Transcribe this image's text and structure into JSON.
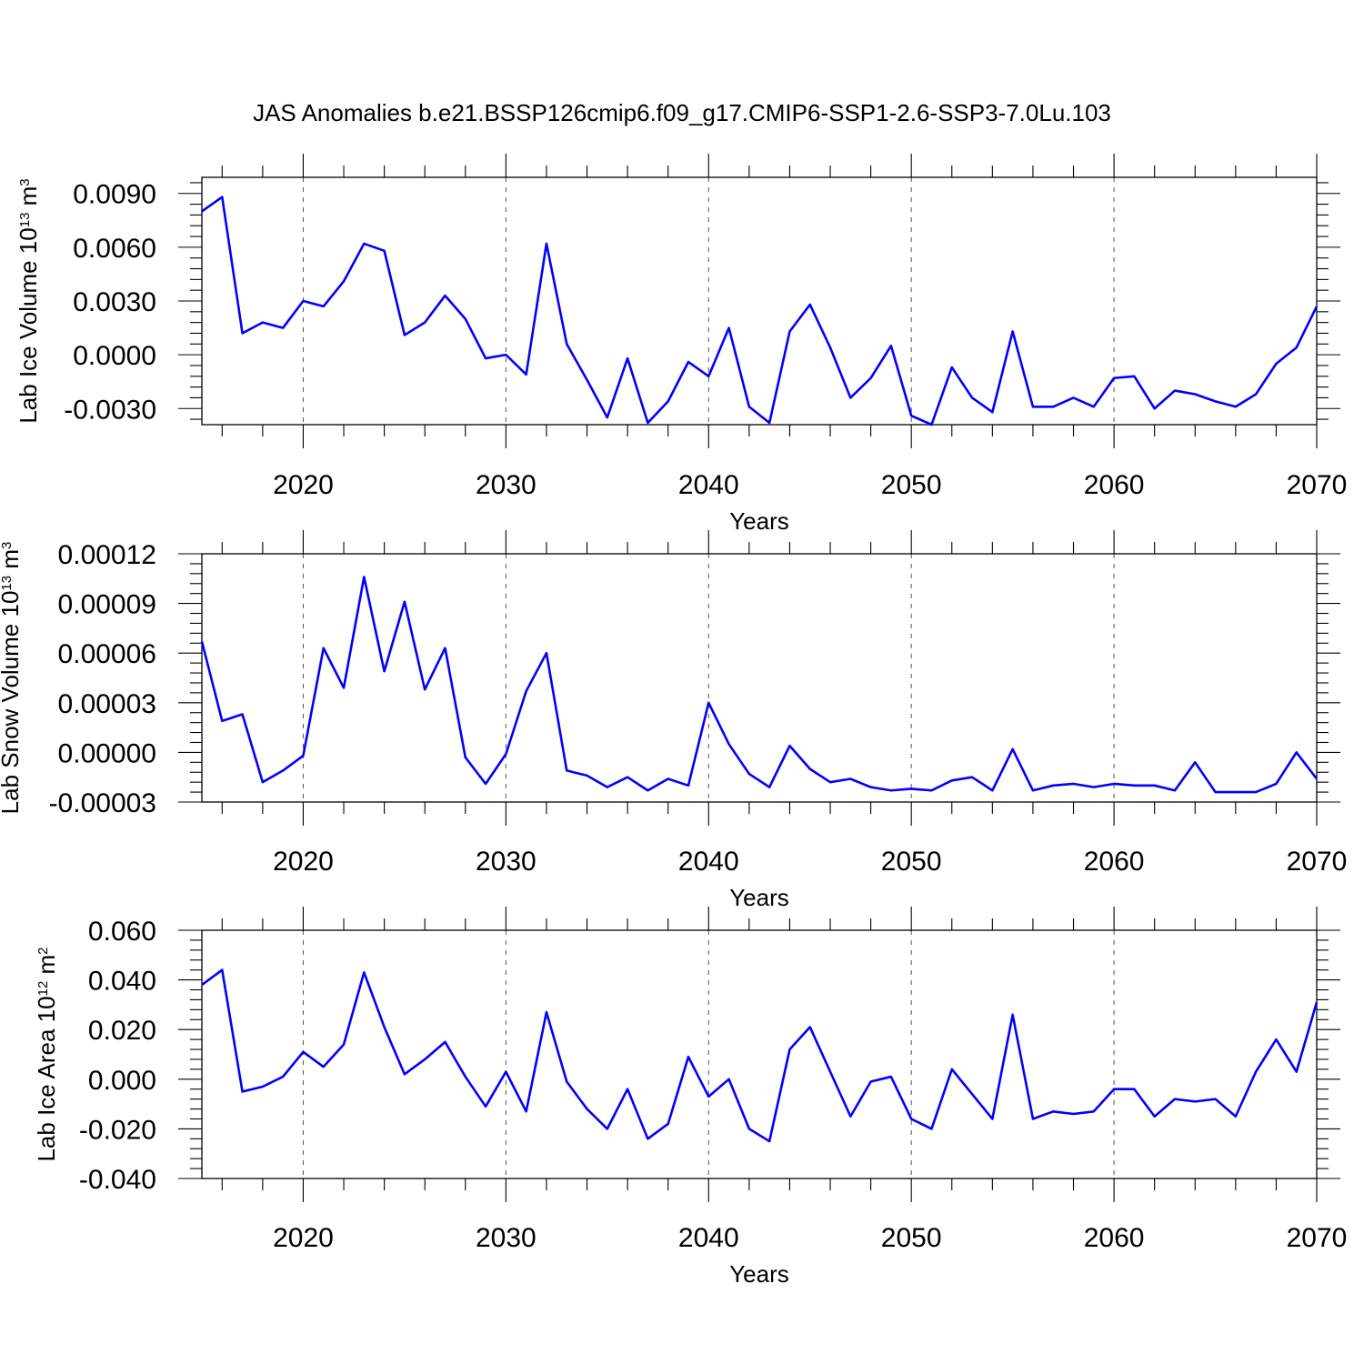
{
  "page": {
    "title": "JAS Anomalies b.e21.BSSP126cmip6.f09_g17.CMIP6-SSP1-2.6-SSP3-7.0Lu.103"
  },
  "colors": {
    "series": "#0000ff",
    "axis": "#000000",
    "grid": "#555555"
  },
  "chart_data": [
    {
      "type": "line",
      "ylabel": "Lab Ice Volume",
      "ylabel_unit_base": "10",
      "ylabel_unit_exp": "13",
      "ylabel_unit": "m",
      "ylabel_unit_pow": "3",
      "xlabel": "Years",
      "xlim": [
        2015,
        2070
      ],
      "ylim": [
        -0.0039,
        0.0099
      ],
      "grid_x": true,
      "x_ticks": [
        2020,
        2030,
        2040,
        2050,
        2060,
        2070
      ],
      "x_tick_labels": [
        "2020",
        "2030",
        "2040",
        "2050",
        "2060",
        "2070"
      ],
      "y_ticks": [
        -0.003,
        0.0,
        0.003,
        0.006,
        0.009
      ],
      "y_tick_labels": [
        "-0.0030",
        "0.0000",
        "0.0030",
        "0.0060",
        "0.0090"
      ],
      "x": [
        2015,
        2016,
        2017,
        2018,
        2019,
        2020,
        2021,
        2022,
        2023,
        2024,
        2025,
        2026,
        2027,
        2028,
        2029,
        2030,
        2031,
        2032,
        2033,
        2034,
        2035,
        2036,
        2037,
        2038,
        2039,
        2040,
        2041,
        2042,
        2043,
        2044,
        2045,
        2046,
        2047,
        2048,
        2049,
        2050,
        2051,
        2052,
        2053,
        2054,
        2055,
        2056,
        2057,
        2058,
        2059,
        2060,
        2061,
        2062,
        2063,
        2064,
        2065,
        2066,
        2067,
        2068,
        2069,
        2070
      ],
      "values": [
        0.008,
        0.0088,
        0.0012,
        0.0018,
        0.0015,
        0.003,
        0.0027,
        0.0041,
        0.0062,
        0.0058,
        0.0011,
        0.0018,
        0.0033,
        0.002,
        -0.0002,
        0.0,
        -0.0011,
        0.0062,
        0.0006,
        -0.0014,
        -0.0035,
        -0.0002,
        -0.0038,
        -0.0026,
        -0.0004,
        -0.0012,
        0.0015,
        -0.0029,
        -0.0038,
        0.0013,
        0.0028,
        0.0004,
        -0.0024,
        -0.0013,
        0.0005,
        -0.0034,
        -0.0039,
        -0.0007,
        -0.0024,
        -0.0032,
        0.0013,
        -0.0029,
        -0.0029,
        -0.0024,
        -0.0029,
        -0.0013,
        -0.0012,
        -0.003,
        -0.002,
        -0.0022,
        -0.0026,
        -0.0029,
        -0.0022,
        -0.0005,
        0.0004,
        0.0027
      ]
    },
    {
      "type": "line",
      "ylabel": "Lab Snow Volume",
      "ylabel_unit_base": "10",
      "ylabel_unit_exp": "13",
      "ylabel_unit": "m",
      "ylabel_unit_pow": "3",
      "xlabel": "Years",
      "xlim": [
        2015,
        2070
      ],
      "ylim": [
        -3e-05,
        0.00012
      ],
      "grid_x": true,
      "x_ticks": [
        2020,
        2030,
        2040,
        2050,
        2060,
        2070
      ],
      "x_tick_labels": [
        "2020",
        "2030",
        "2040",
        "2050",
        "2060",
        "2070"
      ],
      "y_ticks": [
        -3e-05,
        0.0,
        3e-05,
        6e-05,
        9e-05,
        0.00012
      ],
      "y_tick_labels": [
        "-0.00003",
        "0.00000",
        "0.00003",
        "0.00006",
        "0.00009",
        "0.00012"
      ],
      "x": [
        2015,
        2016,
        2017,
        2018,
        2019,
        2020,
        2021,
        2022,
        2023,
        2024,
        2025,
        2026,
        2027,
        2028,
        2029,
        2030,
        2031,
        2032,
        2033,
        2034,
        2035,
        2036,
        2037,
        2038,
        2039,
        2040,
        2041,
        2042,
        2043,
        2044,
        2045,
        2046,
        2047,
        2048,
        2049,
        2050,
        2051,
        2052,
        2053,
        2054,
        2055,
        2056,
        2057,
        2058,
        2059,
        2060,
        2061,
        2062,
        2063,
        2064,
        2065,
        2066,
        2067,
        2068,
        2069,
        2070
      ],
      "values": [
        6.7e-05,
        1.9e-05,
        2.3e-05,
        -1.8e-05,
        -1.1e-05,
        -2e-06,
        6.3e-05,
        3.9e-05,
        0.000106,
        4.9e-05,
        9.1e-05,
        3.8e-05,
        6.3e-05,
        -3e-06,
        -1.9e-05,
        -1e-06,
        3.7e-05,
        6e-05,
        -1.1e-05,
        -1.4e-05,
        -2.1e-05,
        -1.5e-05,
        -2.3e-05,
        -1.6e-05,
        -2e-05,
        3e-05,
        5e-06,
        -1.3e-05,
        -2.1e-05,
        4e-06,
        -1e-05,
        -1.8e-05,
        -1.6e-05,
        -2.1e-05,
        -2.3e-05,
        -2.2e-05,
        -2.3e-05,
        -1.7e-05,
        -1.5e-05,
        -2.3e-05,
        2e-06,
        -2.3e-05,
        -2e-05,
        -1.9e-05,
        -2.1e-05,
        -1.9e-05,
        -2e-05,
        -2e-05,
        -2.3e-05,
        -6e-06,
        -2.4e-05,
        -2.4e-05,
        -2.4e-05,
        -1.9e-05,
        0.0,
        -1.6e-05
      ]
    },
    {
      "type": "line",
      "ylabel": "Lab Ice Area",
      "ylabel_unit_base": "10",
      "ylabel_unit_exp": "12",
      "ylabel_unit": "m",
      "ylabel_unit_pow": "2",
      "xlabel": "Years",
      "xlim": [
        2015,
        2070
      ],
      "ylim": [
        -0.04,
        0.06
      ],
      "grid_x": true,
      "x_ticks": [
        2020,
        2030,
        2040,
        2050,
        2060,
        2070
      ],
      "x_tick_labels": [
        "2020",
        "2030",
        "2040",
        "2050",
        "2060",
        "2070"
      ],
      "y_ticks": [
        -0.04,
        -0.02,
        0.0,
        0.02,
        0.04,
        0.06
      ],
      "y_tick_labels": [
        "-0.040",
        "-0.020",
        "0.000",
        "0.020",
        "0.040",
        "0.060"
      ],
      "x": [
        2015,
        2016,
        2017,
        2018,
        2019,
        2020,
        2021,
        2022,
        2023,
        2024,
        2025,
        2026,
        2027,
        2028,
        2029,
        2030,
        2031,
        2032,
        2033,
        2034,
        2035,
        2036,
        2037,
        2038,
        2039,
        2040,
        2041,
        2042,
        2043,
        2044,
        2045,
        2046,
        2047,
        2048,
        2049,
        2050,
        2051,
        2052,
        2053,
        2054,
        2055,
        2056,
        2057,
        2058,
        2059,
        2060,
        2061,
        2062,
        2063,
        2064,
        2065,
        2066,
        2067,
        2068,
        2069,
        2070
      ],
      "values": [
        0.038,
        0.044,
        -0.005,
        -0.003,
        0.001,
        0.011,
        0.005,
        0.014,
        0.043,
        0.021,
        0.002,
        0.008,
        0.015,
        0.001,
        -0.011,
        0.003,
        -0.013,
        0.027,
        -0.001,
        -0.012,
        -0.02,
        -0.004,
        -0.024,
        -0.018,
        0.009,
        -0.007,
        0.0,
        -0.02,
        -0.025,
        0.012,
        0.021,
        0.003,
        -0.015,
        -0.001,
        0.001,
        -0.016,
        -0.02,
        0.004,
        -0.006,
        -0.016,
        0.026,
        -0.016,
        -0.013,
        -0.014,
        -0.013,
        -0.004,
        -0.004,
        -0.015,
        -0.008,
        -0.009,
        -0.008,
        -0.015,
        0.003,
        0.016,
        0.003,
        0.031
      ]
    }
  ]
}
